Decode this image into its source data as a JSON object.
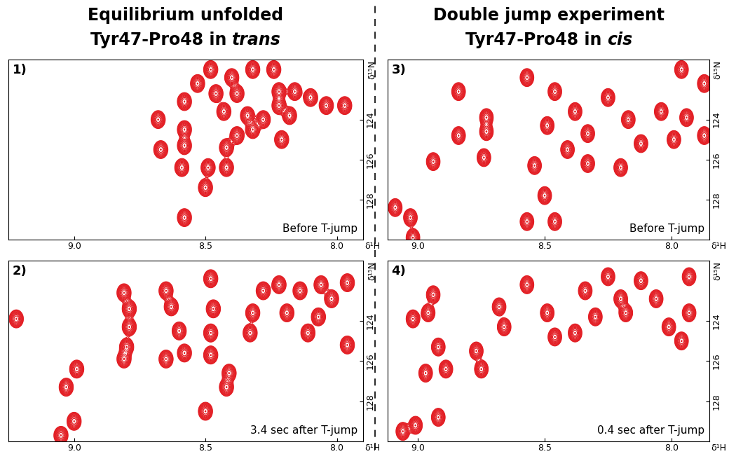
{
  "headings": [
    {
      "title": "Equilibrium unfolded",
      "subtitle": "Tyr47-Pro48 in trans"
    },
    {
      "title": "Double jump experiment",
      "subtitle": "Tyr47-Pro48 in cis"
    }
  ],
  "chart_data": [
    {
      "type": "contour",
      "title": "1)",
      "annotation": "Before T-jump",
      "color": "#e31e24",
      "xlabel": "δ¹H",
      "ylabel": "δ¹⁵N",
      "xlim": [
        9.25,
        7.9
      ],
      "ylim": [
        130,
        121
      ],
      "xticks": [
        9.0,
        8.5,
        8.0
      ],
      "yticks": [
        124,
        126,
        128
      ],
      "x": [
        8.68,
        8.67,
        8.58,
        8.58,
        8.58,
        8.59,
        8.58,
        8.5,
        8.49,
        8.42,
        8.42,
        8.38,
        8.32,
        8.34,
        8.28,
        8.22,
        8.18,
        8.22,
        8.16,
        8.1,
        8.04,
        7.97,
        8.21,
        8.53,
        8.48,
        8.4,
        8.32,
        8.24,
        8.38,
        8.46,
        8.43
      ],
      "y": [
        124.0,
        125.5,
        123.1,
        124.5,
        125.3,
        126.4,
        128.9,
        127.4,
        126.4,
        126.4,
        125.4,
        124.8,
        124.5,
        123.8,
        124.0,
        123.3,
        123.8,
        122.6,
        122.6,
        122.9,
        123.3,
        123.3,
        125.0,
        122.2,
        121.5,
        121.9,
        121.5,
        121.5,
        122.7,
        122.7,
        123.6
      ]
    },
    {
      "type": "contour",
      "title": "2)",
      "annotation": "3.4 sec after T-jump",
      "color": "#e31e24",
      "xlabel": "δ¹H",
      "ylabel": "δ¹⁵N",
      "xlim": [
        9.25,
        7.9
      ],
      "ylim": [
        130,
        121
      ],
      "xticks": [
        9.0,
        8.5,
        8.0
      ],
      "yticks": [
        124,
        126,
        128
      ],
      "x": [
        9.22,
        8.99,
        9.03,
        9.0,
        9.05,
        8.81,
        8.79,
        8.79,
        8.8,
        8.81,
        8.65,
        8.63,
        8.6,
        8.58,
        8.47,
        8.48,
        8.48,
        8.41,
        8.42,
        8.5,
        8.33,
        8.32,
        8.28,
        8.22,
        8.14,
        8.06,
        7.96,
        8.19,
        8.11,
        8.07,
        7.96,
        8.02,
        8.65,
        8.48
      ],
      "y": [
        123.9,
        126.4,
        127.3,
        129.0,
        129.7,
        122.6,
        123.4,
        124.3,
        125.3,
        125.9,
        122.5,
        123.3,
        124.5,
        125.6,
        123.4,
        124.6,
        125.7,
        126.6,
        127.3,
        128.5,
        124.6,
        123.6,
        122.5,
        122.2,
        122.5,
        122.2,
        122.1,
        123.6,
        124.6,
        123.8,
        125.2,
        122.9,
        125.9,
        121.9
      ]
    },
    {
      "type": "contour",
      "title": "3)",
      "annotation": "Before T-jump",
      "color": "#e31e24",
      "xlabel": "δ¹H",
      "ylabel": "δ¹⁵N",
      "xlim": [
        9.12,
        7.85
      ],
      "ylim": [
        130,
        121
      ],
      "xticks": [
        9.0,
        8.5,
        8.0
      ],
      "yticks": [
        124,
        126,
        128
      ],
      "x": [
        9.09,
        9.03,
        9.02,
        8.94,
        8.84,
        8.84,
        8.73,
        8.73,
        8.74,
        8.54,
        8.5,
        8.46,
        8.57,
        8.57,
        8.46,
        8.38,
        8.33,
        8.25,
        8.17,
        8.12,
        8.04,
        7.99,
        7.96,
        7.87,
        7.87,
        7.94,
        8.33,
        8.41,
        8.2,
        8.49
      ],
      "y": [
        128.4,
        128.9,
        129.9,
        126.1,
        122.6,
        124.8,
        123.9,
        124.6,
        125.9,
        126.3,
        127.8,
        129.1,
        129.1,
        121.9,
        122.6,
        123.6,
        124.7,
        122.9,
        124.0,
        125.2,
        123.6,
        125.0,
        121.5,
        122.2,
        124.8,
        123.9,
        126.2,
        125.5,
        126.4,
        124.3
      ]
    },
    {
      "type": "contour",
      "title": "4)",
      "annotation": "0.4 sec after T-jump",
      "color": "#e31e24",
      "xlabel": "δ¹H",
      "ylabel": "δ¹⁵N",
      "xlim": [
        9.12,
        7.85
      ],
      "ylim": [
        130,
        121
      ],
      "xticks": [
        9.0,
        8.5,
        8.0
      ],
      "yticks": [
        124,
        126,
        128
      ],
      "x": [
        9.02,
        8.94,
        8.96,
        8.92,
        8.89,
        8.97,
        9.01,
        9.06,
        8.92,
        8.77,
        8.75,
        8.68,
        8.66,
        8.57,
        8.49,
        8.46,
        8.34,
        8.25,
        8.18,
        8.12,
        8.06,
        8.01,
        7.93,
        7.93,
        7.96,
        8.3,
        8.38,
        8.2
      ],
      "y": [
        123.9,
        122.7,
        123.6,
        125.3,
        126.4,
        126.6,
        129.2,
        129.5,
        128.8,
        125.5,
        126.4,
        123.3,
        124.3,
        122.2,
        123.6,
        124.8,
        122.5,
        121.8,
        123.6,
        122.0,
        122.9,
        124.3,
        121.8,
        123.6,
        125.0,
        123.8,
        124.6,
        122.9
      ]
    }
  ]
}
